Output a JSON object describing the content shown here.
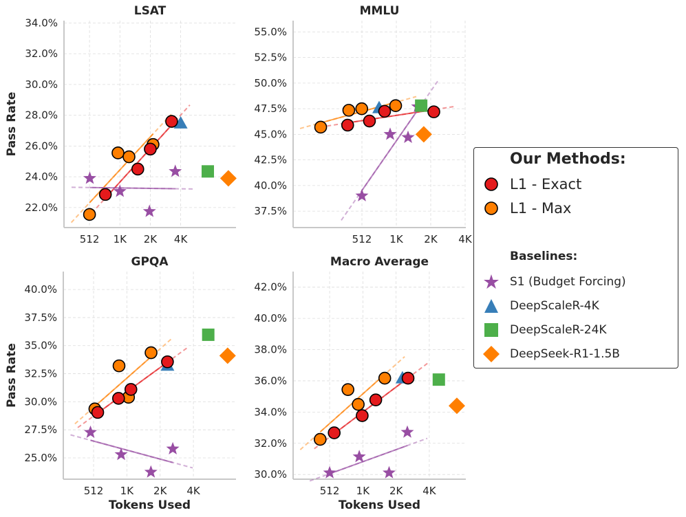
{
  "chart_data": [
    {
      "type": "scatter",
      "title": "LSAT",
      "xlabel": "",
      "ylabel": "Pass Rate",
      "xscale": "log2",
      "xticks": [
        512,
        1024,
        2048,
        4096
      ],
      "xtick_labels": [
        "512",
        "1K",
        "2K",
        "4K"
      ],
      "ylim": [
        20.7,
        34.15
      ],
      "yticks": [
        22,
        24,
        26,
        28,
        30,
        32,
        34
      ],
      "ytick_labels": [
        "22.0%",
        "24.0%",
        "26.0%",
        "28.0%",
        "30.0%",
        "32.0%",
        "34.0%"
      ],
      "grid": true,
      "series": [
        {
          "name": "L1 - Exact",
          "x": [
            735,
            1540,
            2048,
            3330
          ],
          "y": [
            22.85,
            24.5,
            25.8,
            27.6
          ]
        },
        {
          "name": "L1 - Max",
          "x": [
            512,
            980,
            1260,
            2180
          ],
          "y": [
            21.55,
            25.55,
            25.3,
            26.1
          ]
        },
        {
          "name": "S1 (Budget Forcing)",
          "x": [
            515,
            1024,
            2010,
            3620
          ],
          "y": [
            23.9,
            23.05,
            21.75,
            24.35
          ]
        },
        {
          "name": "DeepScaleR-4K",
          "x": [
            4096
          ],
          "y": [
            27.5
          ]
        },
        {
          "name": "DeepScaleR-24K",
          "x": [
            7600
          ],
          "y": [
            24.35
          ]
        },
        {
          "name": "DeepSeek-R1-1.5B",
          "x": [
            12150
          ],
          "y": [
            23.9
          ]
        }
      ]
    },
    {
      "type": "scatter",
      "title": "MMLU",
      "xlabel": "",
      "ylabel": "",
      "xscale": "log2",
      "xticks": [
        512,
        1024,
        2048,
        4096
      ],
      "xtick_labels": [
        "512",
        "1K",
        "2K",
        "4K"
      ],
      "ylim": [
        35.9,
        56.1
      ],
      "yticks": [
        37.5,
        40,
        42.5,
        45,
        47.5,
        50,
        52.5,
        55
      ],
      "ytick_labels": [
        "37.5%",
        "40.0%",
        "42.5%",
        "45.0%",
        "47.5%",
        "50.0%",
        "52.5%",
        "55.0%"
      ],
      "grid": true,
      "series": [
        {
          "name": "L1 - Exact",
          "x": [
            384,
            596,
            809,
            2180
          ],
          "y": [
            45.9,
            46.3,
            47.25,
            47.2
          ]
        },
        {
          "name": "L1 - Max",
          "x": [
            223,
            393,
            510,
            1010
          ],
          "y": [
            45.7,
            47.35,
            47.5,
            47.8
          ]
        },
        {
          "name": "S1 (Budget Forcing)",
          "x": [
            512,
            904,
            1297,
            1575
          ],
          "y": [
            39.0,
            45.0,
            44.7,
            47.7
          ]
        },
        {
          "name": "DeepScaleR-4K",
          "x": [
            724
          ],
          "y": [
            47.6
          ]
        },
        {
          "name": "DeepScaleR-24K",
          "x": [
            1690
          ],
          "y": [
            47.8
          ]
        },
        {
          "name": "DeepSeek-R1-1.5B",
          "x": [
            1780
          ],
          "y": [
            45.0
          ]
        }
      ]
    },
    {
      "type": "scatter",
      "title": "GPQA",
      "xlabel": "Tokens Used",
      "ylabel": "Pass Rate",
      "xscale": "log2",
      "xticks": [
        512,
        1024,
        2048,
        4096
      ],
      "xtick_labels": [
        "512",
        "1K",
        "2K",
        "4K"
      ],
      "ylim": [
        23.1,
        41.6
      ],
      "yticks": [
        25,
        27.5,
        30,
        32.5,
        35,
        37.5,
        40
      ],
      "ytick_labels": [
        "25.0%",
        "27.5%",
        "30.0%",
        "32.5%",
        "35.0%",
        "37.5%",
        "40.0%"
      ],
      "grid": true,
      "series": [
        {
          "name": "L1 - Exact",
          "x": [
            558,
            861,
            1114,
            2385
          ],
          "y": [
            29.05,
            30.3,
            31.1,
            33.56
          ]
        },
        {
          "name": "L1 - Max",
          "x": [
            526,
            870,
            1060,
            1695
          ],
          "y": [
            29.36,
            33.2,
            30.4,
            34.37
          ]
        },
        {
          "name": "S1 (Budget Forcing)",
          "x": [
            480,
            909,
            1690,
            2665
          ],
          "y": [
            27.27,
            25.3,
            23.73,
            25.8
          ]
        },
        {
          "name": "DeepScaleR-4K",
          "x": [
            2385
          ],
          "y": [
            33.25
          ]
        },
        {
          "name": "DeepScaleR-24K",
          "x": [
            5580
          ],
          "y": [
            35.97
          ]
        },
        {
          "name": "DeepSeek-R1-1.5B",
          "x": [
            8350
          ],
          "y": [
            34.1
          ]
        }
      ]
    },
    {
      "type": "scatter",
      "title": "Macro Average",
      "xlabel": "Tokens Used",
      "ylabel": "",
      "xscale": "log2",
      "xticks": [
        512,
        1024,
        2048,
        4096
      ],
      "xtick_labels": [
        "512",
        "1K",
        "2K",
        "4K"
      ],
      "ylim": [
        29.7,
        43.0
      ],
      "yticks": [
        30,
        32,
        34,
        36,
        38,
        40,
        42
      ],
      "ytick_labels": [
        "30.0%",
        "32.0%",
        "34.0%",
        "36.0%",
        "38.0%",
        "40.0%",
        "42.0%"
      ],
      "grid": true,
      "series": [
        {
          "name": "L1 - Exact",
          "x": [
            563,
            1010,
            1340,
            2630
          ],
          "y": [
            32.67,
            33.77,
            34.78,
            36.17
          ]
        },
        {
          "name": "L1 - Max",
          "x": [
            420,
            750,
            930,
            1617
          ],
          "y": [
            32.25,
            35.44,
            34.49,
            36.17
          ]
        },
        {
          "name": "S1 (Budget Forcing)",
          "x": [
            512,
            950,
            1770,
            2590
          ],
          "y": [
            30.11,
            31.14,
            30.11,
            32.71
          ]
        },
        {
          "name": "DeepScaleR-4K",
          "x": [
            2340
          ],
          "y": [
            36.19
          ]
        },
        {
          "name": "DeepScaleR-24K",
          "x": [
            5000
          ],
          "y": [
            36.08
          ]
        },
        {
          "name": "DeepSeek-R1-1.5B",
          "x": [
            7280
          ],
          "y": [
            34.4
          ]
        }
      ]
    }
  ],
  "legend": {
    "placement": "right",
    "our_methods_heading": "Our Methods:",
    "baselines_heading": "Baselines:",
    "items": [
      {
        "label": "L1 - Exact",
        "marker": "circle",
        "color": "#e41a1c"
      },
      {
        "label": "L1 - Max",
        "marker": "circle",
        "color": "#ff7f00"
      },
      {
        "label": "S1 (Budget Forcing)",
        "marker": "star",
        "color": "#984ea3"
      },
      {
        "label": "DeepScaleR-4K",
        "marker": "triangle",
        "color": "#377eb8"
      },
      {
        "label": "DeepScaleR-24K",
        "marker": "square",
        "color": "#4daf4a"
      },
      {
        "label": "DeepSeek-R1-1.5B",
        "marker": "diamond",
        "color": "#ff7f00"
      }
    ]
  }
}
